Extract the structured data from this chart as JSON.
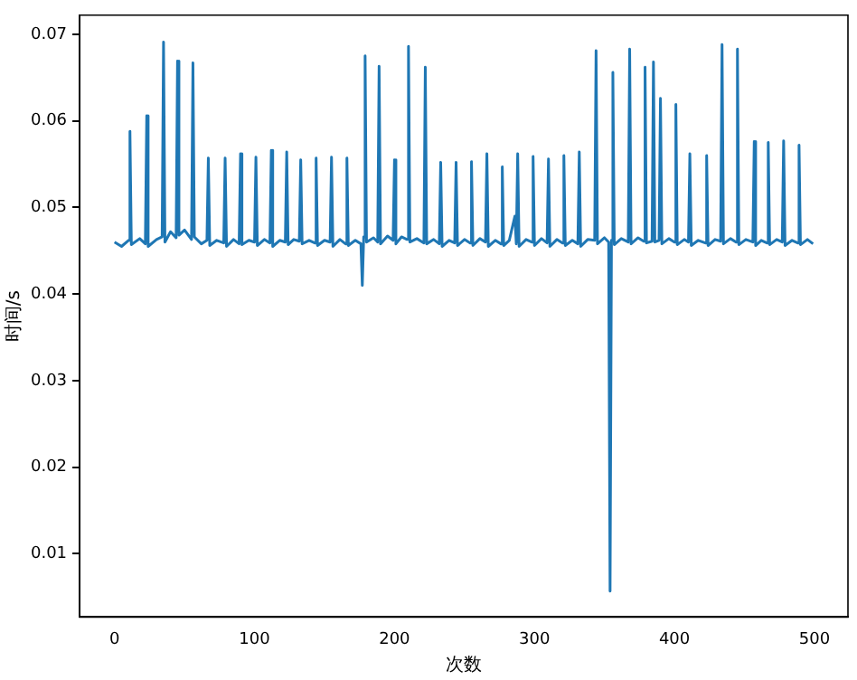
{
  "chart_data": {
    "type": "line",
    "xlabel": "次数",
    "ylabel": "时间/s",
    "xlim": [
      -24.95,
      523.95
    ],
    "xticks": [
      0,
      100,
      200,
      300,
      400,
      500
    ],
    "ylim": [
      0.0027,
      0.0722
    ],
    "yticks": [
      0.01,
      0.02,
      0.03,
      0.04,
      0.05,
      0.06,
      0.07
    ],
    "grid": false,
    "legend": false,
    "series": [
      {
        "color": "#1f77b4",
        "x": [
          0,
          5,
          10,
          11,
          12,
          18,
          22,
          23,
          24,
          30,
          34,
          35,
          36,
          40,
          44,
          45,
          46,
          50,
          55,
          56,
          57,
          62,
          66,
          67,
          68,
          73,
          78,
          79,
          80,
          85,
          89,
          90,
          91,
          96,
          100,
          101,
          102,
          107,
          111,
          112,
          113,
          118,
          122,
          123,
          124,
          128,
          132,
          133,
          134,
          139,
          143,
          144,
          145,
          150,
          154,
          155,
          156,
          161,
          165,
          166,
          167,
          172,
          176,
          177,
          178,
          179,
          180,
          185,
          188,
          189,
          190,
          195,
          199,
          200,
          201,
          205,
          209,
          210,
          211,
          216,
          221,
          222,
          223,
          228,
          232,
          233,
          234,
          239,
          243,
          244,
          245,
          250,
          254,
          255,
          256,
          261,
          265,
          266,
          267,
          272,
          276,
          277,
          278,
          282,
          286,
          287,
          288,
          289,
          294,
          298,
          299,
          300,
          305,
          309,
          310,
          311,
          316,
          320,
          321,
          322,
          327,
          331,
          332,
          333,
          338,
          343,
          344,
          345,
          350,
          353,
          354,
          355,
          356,
          357,
          362,
          367,
          368,
          369,
          374,
          378,
          379,
          380,
          384,
          385,
          386,
          389,
          390,
          391,
          396,
          400,
          401,
          402,
          407,
          410,
          411,
          412,
          417,
          422,
          423,
          424,
          429,
          433,
          434,
          435,
          440,
          444,
          445,
          446,
          451,
          456,
          457,
          458,
          462,
          466,
          467,
          468,
          473,
          477,
          478,
          479,
          484,
          488,
          489,
          490,
          495,
          499
        ],
        "values": [
          0.046,
          0.0455,
          0.0462,
          0.0588,
          0.0457,
          0.0464,
          0.0458,
          0.0606,
          0.0455,
          0.0463,
          0.0466,
          0.0691,
          0.046,
          0.0472,
          0.0465,
          0.0669,
          0.0468,
          0.0474,
          0.0463,
          0.0667,
          0.0466,
          0.0458,
          0.0462,
          0.0557,
          0.0456,
          0.0462,
          0.0459,
          0.0557,
          0.0455,
          0.0463,
          0.0458,
          0.0562,
          0.0457,
          0.0462,
          0.046,
          0.0558,
          0.0456,
          0.0463,
          0.0459,
          0.0566,
          0.0455,
          0.0462,
          0.046,
          0.0564,
          0.0457,
          0.0463,
          0.0461,
          0.0555,
          0.0458,
          0.0462,
          0.0459,
          0.0557,
          0.0456,
          0.0462,
          0.046,
          0.0558,
          0.0455,
          0.0463,
          0.0458,
          0.0557,
          0.0456,
          0.0462,
          0.0458,
          0.041,
          0.0466,
          0.0675,
          0.046,
          0.0465,
          0.046,
          0.0663,
          0.0458,
          0.0467,
          0.0462,
          0.0555,
          0.0458,
          0.0466,
          0.0463,
          0.0686,
          0.046,
          0.0464,
          0.0459,
          0.0662,
          0.0458,
          0.0463,
          0.0458,
          0.0552,
          0.0455,
          0.0462,
          0.0459,
          0.0552,
          0.0456,
          0.0463,
          0.0459,
          0.0553,
          0.0456,
          0.0464,
          0.046,
          0.0562,
          0.0455,
          0.0462,
          0.0458,
          0.0547,
          0.0456,
          0.0462,
          0.049,
          0.0458,
          0.0562,
          0.0455,
          0.0463,
          0.046,
          0.0559,
          0.0456,
          0.0464,
          0.0459,
          0.0556,
          0.0455,
          0.0463,
          0.0459,
          0.056,
          0.0456,
          0.0462,
          0.0458,
          0.0564,
          0.0455,
          0.0463,
          0.0462,
          0.0681,
          0.0458,
          0.0465,
          0.046,
          0.0057,
          0.0462,
          0.0656,
          0.0457,
          0.0464,
          0.046,
          0.0683,
          0.0458,
          0.0465,
          0.0461,
          0.0662,
          0.0459,
          0.0461,
          0.0668,
          0.046,
          0.0462,
          0.0626,
          0.0458,
          0.0464,
          0.046,
          0.0619,
          0.0457,
          0.0463,
          0.046,
          0.0562,
          0.0456,
          0.0462,
          0.0459,
          0.056,
          0.0456,
          0.0463,
          0.0461,
          0.0688,
          0.0458,
          0.0464,
          0.046,
          0.0683,
          0.0457,
          0.0463,
          0.046,
          0.0576,
          0.0456,
          0.0462,
          0.0459,
          0.0575,
          0.0457,
          0.0463,
          0.046,
          0.0577,
          0.0456,
          0.0462,
          0.0459,
          0.0572,
          0.0457,
          0.0463,
          0.0458
        ]
      }
    ]
  }
}
